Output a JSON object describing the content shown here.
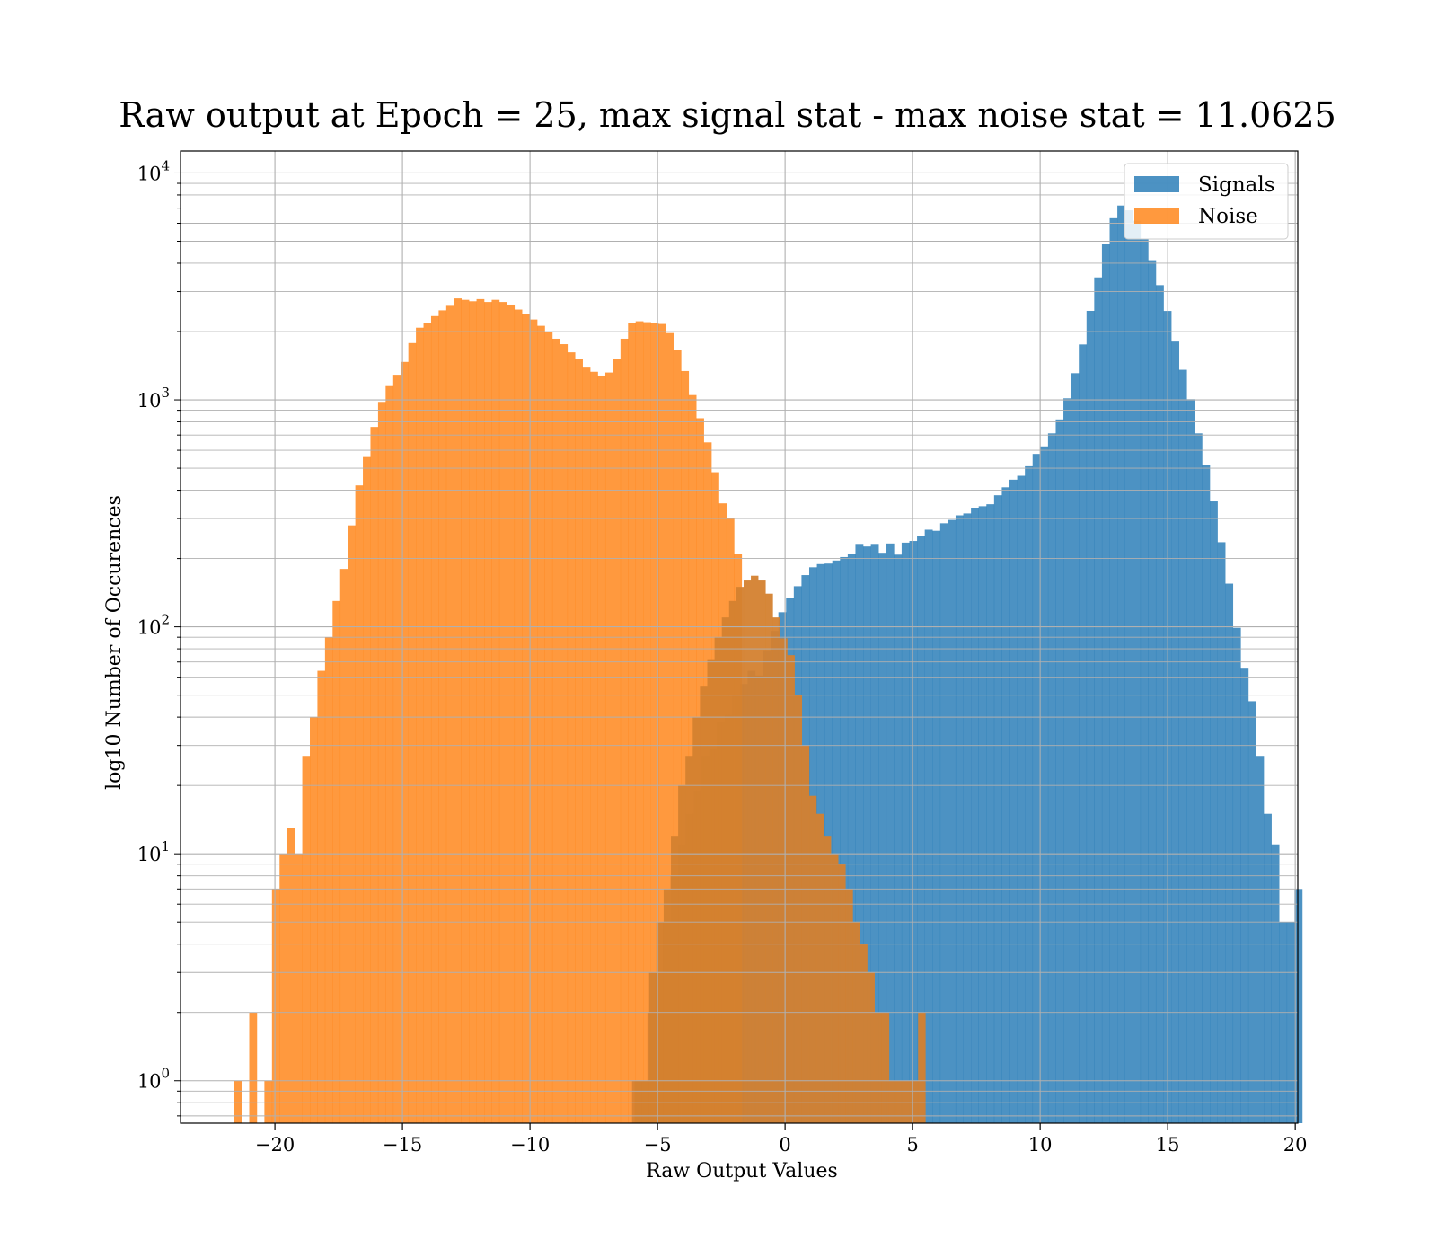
{
  "chart_data": {
    "type": "bar",
    "title": "Raw output at Epoch = 25, max signal stat - max noise stat = 11.0625",
    "xlabel": "Raw Output Values",
    "ylabel": "log10 Number of Occurences",
    "xlim": [
      -23.7,
      20.1
    ],
    "ylim": [
      0.65,
      12500
    ],
    "yscale": "log",
    "grid": true,
    "legend_position": "top-right",
    "x_ticks": [
      -20,
      -15,
      -10,
      -5,
      0,
      5,
      10,
      15,
      20
    ],
    "x_tick_labels": [
      "−20",
      "−15",
      "−10",
      "−5",
      "0",
      "5",
      "10",
      "15",
      "20"
    ],
    "y_ticks": [
      1,
      10,
      100,
      1000,
      10000
    ],
    "y_tick_labels": [
      {
        "base": "10",
        "exp": "0"
      },
      {
        "base": "10",
        "exp": "1"
      },
      {
        "base": "10",
        "exp": "2"
      },
      {
        "base": "10",
        "exp": "3"
      },
      {
        "base": "10",
        "exp": "4"
      }
    ],
    "series": [
      {
        "name": "Signals",
        "color": "#1f77b4",
        "opacity": 0.8,
        "bin_start": -6.0,
        "bin_width": 0.302,
        "values": [
          1,
          1,
          2,
          3,
          5,
          8,
          11,
          15,
          19,
          27,
          29,
          38,
          41,
          50,
          56,
          64,
          61,
          79,
          96,
          116,
          134,
          151,
          169,
          183,
          189,
          190,
          196,
          203,
          210,
          232,
          226,
          232,
          212,
          233,
          208,
          235,
          239,
          252,
          268,
          265,
          286,
          296,
          310,
          316,
          335,
          340,
          347,
          380,
          412,
          445,
          463,
          510,
          578,
          624,
          712,
          820,
          1016,
          1311,
          1755,
          2467,
          3465,
          4874,
          6318,
          7187,
          6845,
          6156,
          5127,
          4126,
          3203,
          2465,
          1807,
          1357,
          1007,
          712,
          516,
          357,
          236,
          155,
          99,
          66,
          47,
          27,
          15,
          11,
          5,
          5,
          7
        ]
      },
      {
        "name": "Noise",
        "color": "#ff7f0e",
        "opacity": 0.8,
        "bin_start": -21.6,
        "bin_width": 0.297,
        "values": [
          1,
          0,
          2,
          0,
          1,
          7,
          10,
          13,
          10,
          27,
          40,
          64,
          90,
          130,
          180,
          280,
          420,
          560,
          760,
          980,
          1150,
          1290,
          1470,
          1780,
          2080,
          2180,
          2340,
          2480,
          2620,
          2800,
          2760,
          2720,
          2780,
          2700,
          2760,
          2700,
          2630,
          2500,
          2400,
          2260,
          2120,
          2000,
          1860,
          1760,
          1620,
          1520,
          1400,
          1330,
          1280,
          1320,
          1510,
          1860,
          2190,
          2220,
          2200,
          2180,
          2160,
          1970,
          1660,
          1340,
          1050,
          830,
          650,
          480,
          350,
          300,
          210
        ]
      },
      {
        "name": "",
        "color": "#d4812f",
        "opacity": 0.95,
        "bin_start": -5.9,
        "bin_width": 0.285,
        "values": [
          1,
          1,
          3,
          5,
          7,
          12,
          20,
          27,
          40,
          55,
          72,
          90,
          110,
          130,
          150,
          160,
          168,
          160,
          140,
          110,
          89,
          75,
          50,
          30,
          18,
          15,
          12,
          10,
          9,
          7,
          5,
          4,
          3,
          2,
          2,
          1,
          1,
          1,
          1,
          2
        ]
      }
    ]
  }
}
